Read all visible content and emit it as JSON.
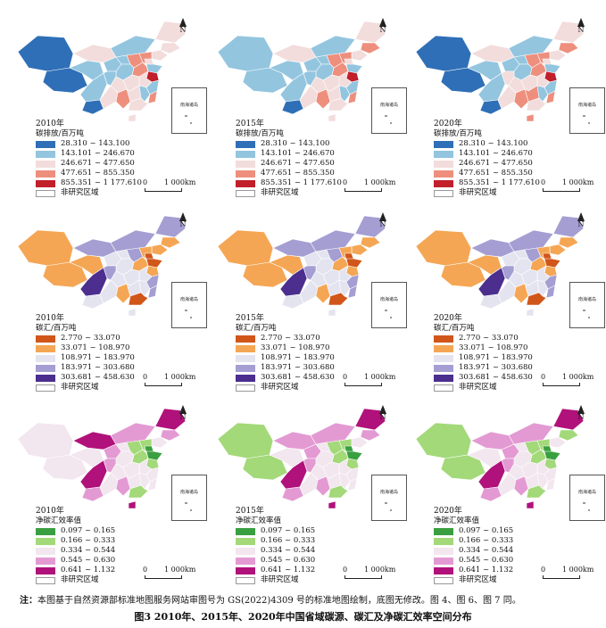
{
  "colors": {
    "carbon": [
      "#2f6fb7",
      "#93c5df",
      "#f2dcdc",
      "#ee8f7d",
      "#c11f2a"
    ],
    "sink": [
      "#d1561a",
      "#f5a654",
      "#e4e4f0",
      "#a59ed3",
      "#4b2e8e"
    ],
    "netsink": [
      "#3a9f40",
      "#a3d979",
      "#f2e6ef",
      "#e39ad3",
      "#b0117a"
    ]
  },
  "legends": {
    "carbon_title": "碳排放/百万吨",
    "carbon_items": [
      "28.310 ~ 143.100",
      "143.101 ~ 246.670",
      "246.671 ~ 477.650",
      "477.651 ~ 855.350",
      "855.351 ~ 1 177.610"
    ],
    "sink_title": "碳汇/百万吨",
    "sink_items": [
      "2.770 ~ 33.070",
      "33.071 ~ 108.970",
      "108.971 ~ 183.970",
      "183.971 ~ 303.680",
      "303.681 ~ 458.630"
    ],
    "netsink_title": "净碳汇效率值",
    "netsink_items": [
      "0.097 ~ 0.165",
      "0.166 ~ 0.333",
      "0.334 ~ 0.544",
      "0.545 ~ 0.630",
      "0.641 ~ 1.132"
    ],
    "non_study": "非研究区域"
  },
  "years": [
    "2010年",
    "2015年",
    "2020年"
  ],
  "north_label": "N",
  "scale_label": "1 000km",
  "scale_zero": "0",
  "inset_label": "南海诸岛",
  "panels": [
    {
      "row": 0,
      "col": 0,
      "year": "2010年",
      "fills": [
        0,
        0,
        1,
        2,
        1,
        2,
        2,
        2,
        1,
        1,
        3,
        3,
        2,
        1,
        3,
        4,
        2,
        1,
        1,
        1,
        2,
        2,
        2,
        1,
        1,
        3,
        0,
        2,
        3,
        2,
        2
      ]
    },
    {
      "row": 0,
      "col": 1,
      "year": "2015年",
      "fills": [
        1,
        1,
        1,
        2,
        1,
        2,
        3,
        2,
        1,
        1,
        3,
        3,
        2,
        1,
        3,
        4,
        2,
        1,
        1,
        1,
        2,
        2,
        2,
        1,
        1,
        3,
        0,
        2,
        3,
        2,
        2
      ]
    },
    {
      "row": 0,
      "col": 2,
      "year": "2020年",
      "fills": [
        0,
        0,
        1,
        2,
        1,
        2,
        3,
        2,
        1,
        1,
        3,
        3,
        2,
        1,
        3,
        4,
        2,
        1,
        1,
        2,
        2,
        2,
        3,
        1,
        1,
        3,
        0,
        2,
        3,
        2,
        3
      ]
    },
    {
      "row": 1,
      "col": 0,
      "year": "2010年",
      "fills": [
        1,
        1,
        1,
        3,
        3,
        3,
        1,
        1,
        2,
        2,
        3,
        1,
        0,
        0,
        1,
        1,
        2,
        2,
        4,
        3,
        2,
        2,
        2,
        2,
        3,
        3,
        2,
        2,
        1,
        0,
        2
      ]
    },
    {
      "row": 1,
      "col": 1,
      "year": "2015年",
      "fills": [
        1,
        1,
        1,
        3,
        3,
        3,
        1,
        1,
        2,
        2,
        3,
        1,
        0,
        0,
        1,
        1,
        2,
        2,
        4,
        3,
        2,
        2,
        2,
        2,
        3,
        3,
        2,
        2,
        1,
        0,
        2
      ]
    },
    {
      "row": 1,
      "col": 2,
      "year": "2020年",
      "fills": [
        1,
        1,
        1,
        3,
        3,
        3,
        1,
        1,
        2,
        2,
        3,
        1,
        0,
        0,
        1,
        1,
        2,
        2,
        4,
        3,
        2,
        2,
        2,
        2,
        3,
        3,
        2,
        2,
        1,
        0,
        2
      ]
    },
    {
      "row": 2,
      "col": 0,
      "year": "2010年",
      "fills": [
        2,
        2,
        2,
        4,
        3,
        4,
        3,
        2,
        3,
        2,
        1,
        1,
        0,
        0,
        1,
        1,
        2,
        2,
        4,
        3,
        2,
        2,
        2,
        2,
        2,
        2,
        3,
        2,
        3,
        1,
        4
      ]
    },
    {
      "row": 2,
      "col": 1,
      "year": "2015年",
      "fills": [
        1,
        1,
        2,
        3,
        3,
        4,
        3,
        2,
        3,
        2,
        1,
        1,
        0,
        0,
        1,
        1,
        2,
        2,
        4,
        3,
        2,
        2,
        2,
        2,
        2,
        2,
        3,
        2,
        3,
        1,
        4
      ]
    },
    {
      "row": 2,
      "col": 2,
      "year": "2020年",
      "fills": [
        1,
        1,
        2,
        3,
        3,
        4,
        1,
        2,
        3,
        2,
        1,
        1,
        0,
        0,
        1,
        1,
        2,
        2,
        4,
        3,
        2,
        2,
        2,
        2,
        2,
        2,
        3,
        2,
        3,
        1,
        4
      ]
    }
  ],
  "note_prefix": "注：",
  "note_text": "本图基于自然资源部标准地图服务网站审图号为 GS(2022)4309 号的标准地图绘制，底图无修改。图 4、图 6、图 7 同。",
  "caption": "图3 2010年、2015年、2020年中国省域碳源、碳汇及净碳汇效率空间分布"
}
